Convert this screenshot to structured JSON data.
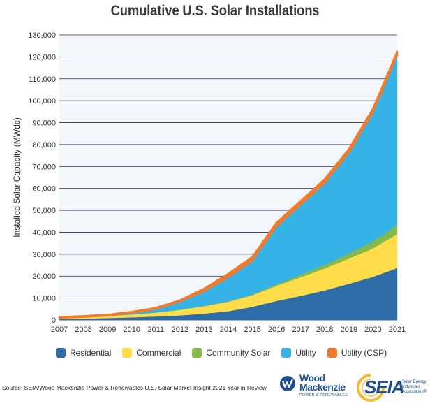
{
  "chart_data": {
    "type": "area",
    "stacked": true,
    "title": "Cumulative U.S. Solar Installations",
    "ylabel": "Installed Solar Capacity (MWdc)",
    "xlabel": "",
    "x": [
      "2007",
      "2008",
      "2009",
      "2010",
      "2011",
      "2012",
      "2013",
      "2014",
      "2015",
      "2016",
      "2017",
      "2018",
      "2019",
      "2020",
      "2021"
    ],
    "yticks": [
      "0",
      "10,000",
      "20,000",
      "30,000",
      "40,000",
      "50,000",
      "60,000",
      "70,000",
      "80,000",
      "90,000",
      "100,000",
      "110,000",
      "120,000",
      "130,000"
    ],
    "ylim": [
      0,
      130000
    ],
    "grid": true,
    "legend_position": "bottom",
    "series": [
      {
        "name": "Residential",
        "color": "#2e6ca8",
        "values": [
          400,
          600,
          900,
          1200,
          1600,
          2100,
          2900,
          4000,
          6000,
          8700,
          11000,
          13500,
          16500,
          19700,
          23700
        ]
      },
      {
        "name": "Commercial",
        "color": "#ffdd4a",
        "values": [
          500,
          700,
          900,
          1300,
          1800,
          2500,
          3400,
          4300,
          5300,
          6900,
          8500,
          10000,
          11500,
          13000,
          15500
        ]
      },
      {
        "name": "Community Solar",
        "color": "#86b94a",
        "values": [
          0,
          0,
          0,
          0,
          0,
          50,
          100,
          200,
          300,
          600,
          1100,
          1600,
          2300,
          3100,
          4000
        ]
      },
      {
        "name": "Utility",
        "color": "#36b3e6",
        "values": [
          50,
          100,
          200,
          700,
          1600,
          3800,
          6700,
          11000,
          15500,
          26500,
          32000,
          37500,
          46000,
          59000,
          77500
        ]
      },
      {
        "name": "Utility (CSP)",
        "color": "#ef7c2e",
        "values": [
          400,
          400,
          450,
          500,
          550,
          600,
          1200,
          1600,
          1700,
          1700,
          1700,
          1700,
          1700,
          1700,
          1700
        ]
      }
    ]
  },
  "source": {
    "prefix": "Source: ",
    "text": "SEIA/Wood Mackenzie Power & Renewables U.S. Solar Market Insight 2021 Year in Review"
  },
  "logos": {
    "wood_mackenzie": {
      "name_line1": "Wood",
      "name_line2": "Mackenzie",
      "tagline": "POWER & RENEWABLES",
      "color": "#1d4f91"
    },
    "seia": {
      "name": "SEIA",
      "tagline": "Solar Energy Industries Association®",
      "color": "#1f4e8c",
      "accent": "#f5b82e"
    }
  }
}
